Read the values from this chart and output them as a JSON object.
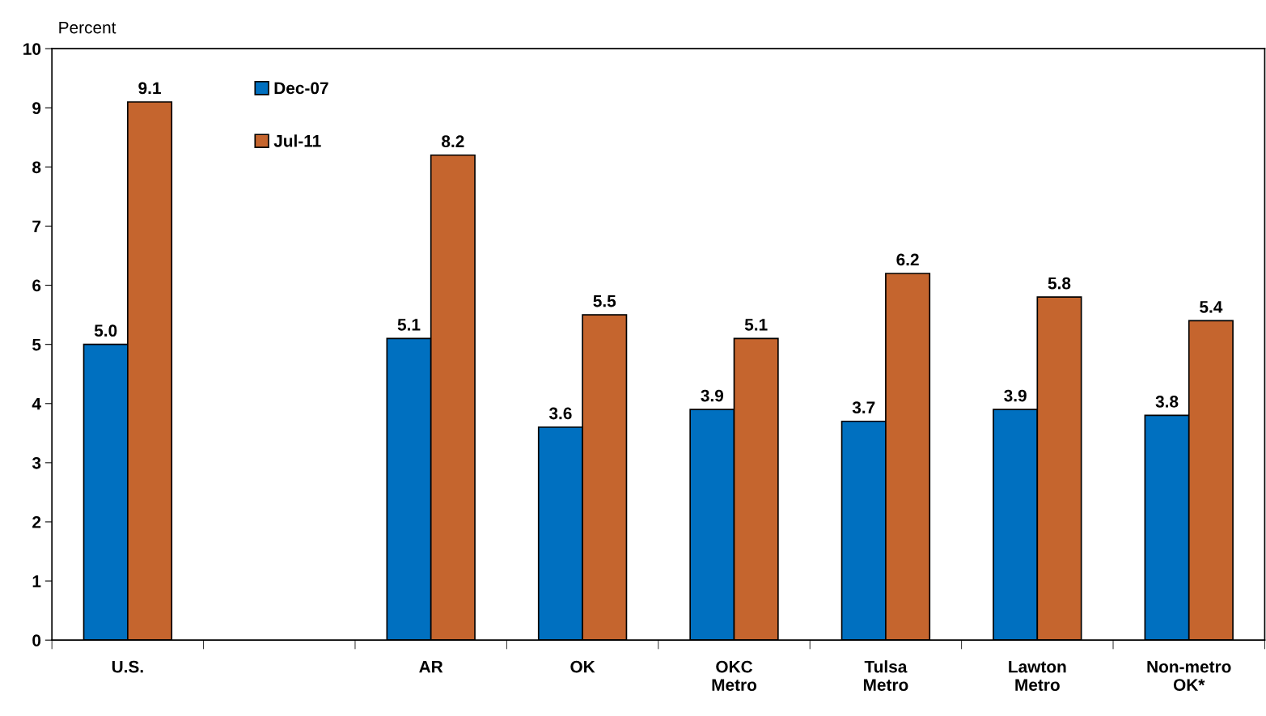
{
  "chart_data": {
    "type": "bar",
    "ylabel": "Percent",
    "categories": [
      "U.S.",
      null,
      "AR",
      "OK",
      "OKC\nMetro",
      "Tulsa\nMetro",
      "Lawton\nMetro",
      "Non-metro\nOK*"
    ],
    "series": [
      {
        "name": "Dec-07",
        "color": "#0070c0",
        "values": [
          5.0,
          null,
          5.1,
          3.6,
          3.9,
          3.7,
          3.9,
          3.8
        ],
        "value_labels": [
          "5.0",
          null,
          "5.1",
          "3.6",
          "3.9",
          "3.7",
          "3.9",
          "3.8"
        ]
      },
      {
        "name": "Jul-11",
        "color": "#c5652e",
        "values": [
          9.1,
          null,
          8.2,
          5.5,
          5.1,
          6.2,
          5.8,
          5.4
        ],
        "value_labels": [
          "9.1",
          null,
          "8.2",
          "5.5",
          "5.1",
          "6.2",
          "5.8",
          "5.4"
        ]
      }
    ],
    "ylim": [
      0,
      10
    ],
    "yticks": [
      0,
      1,
      2,
      3,
      4,
      5,
      6,
      7,
      8,
      9,
      10
    ],
    "grid": false,
    "legend": "top left"
  }
}
